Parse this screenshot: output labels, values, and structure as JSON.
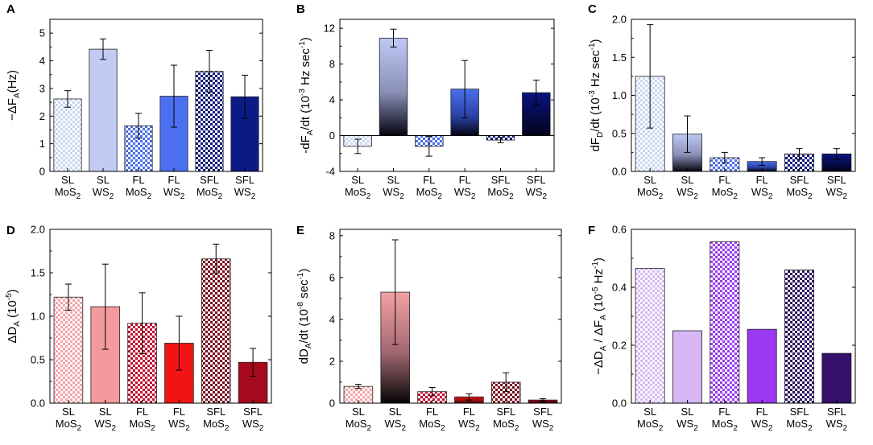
{
  "figure": {
    "panels": [
      {
        "id": "A",
        "ylabel": [
          {
            "t": "−ΔF"
          },
          {
            "t": "A",
            "sub": true
          },
          {
            "t": "(Hz)"
          }
        ]
      },
      {
        "id": "B",
        "ylabel": [
          {
            "t": "-dF"
          },
          {
            "t": "A",
            "sub": true
          },
          {
            "t": "/dt (10"
          },
          {
            "t": "-3",
            "sup": true
          },
          {
            "t": " Hz sec"
          },
          {
            "t": "-1",
            "sup": true
          },
          {
            "t": ")"
          }
        ]
      },
      {
        "id": "C",
        "ylabel": [
          {
            "t": "dF"
          },
          {
            "t": "D",
            "sub": true
          },
          {
            "t": "/dt (10"
          },
          {
            "t": "-3",
            "sup": true
          },
          {
            "t": " Hz sec"
          },
          {
            "t": "-1",
            "sup": true
          },
          {
            "t": ")"
          }
        ]
      },
      {
        "id": "D",
        "ylabel": [
          {
            "t": "ΔD"
          },
          {
            "t": "A",
            "sub": true
          },
          {
            "t": " (10"
          },
          {
            "t": "-5",
            "sup": true
          },
          {
            "t": ")"
          }
        ]
      },
      {
        "id": "E",
        "ylabel": [
          {
            "t": "dD"
          },
          {
            "t": "A",
            "sub": true
          },
          {
            "t": "/dt (10"
          },
          {
            "t": "-8",
            "sup": true
          },
          {
            "t": " sec"
          },
          {
            "t": "-1",
            "sup": true
          },
          {
            "t": ")"
          }
        ]
      },
      {
        "id": "F",
        "ylabel": [
          {
            "t": "−ΔD"
          },
          {
            "t": "A",
            "sub": true
          },
          {
            "t": " / ΔF"
          },
          {
            "t": "A",
            "sub": true
          },
          {
            "t": " (10"
          },
          {
            "t": "-5",
            "sup": true
          },
          {
            "t": " Hz"
          },
          {
            "t": "-1",
            "sup": true
          },
          {
            "t": ")"
          }
        ]
      }
    ]
  },
  "chart_data": [
    {
      "panel": "A",
      "type": "bar",
      "categories": [
        [
          "SL",
          "MoS",
          "2"
        ],
        [
          "SL",
          "WS",
          "2"
        ],
        [
          "FL",
          "MoS",
          "2"
        ],
        [
          "FL",
          "WS",
          "2"
        ],
        [
          "SFL",
          "MoS",
          "2"
        ],
        [
          "SFL",
          "WS",
          "2"
        ]
      ],
      "values": [
        2.62,
        4.42,
        1.65,
        2.72,
        3.62,
        2.7
      ],
      "errors": [
        0.3,
        0.37,
        0.45,
        1.12,
        0.76,
        0.78
      ],
      "ylim": [
        0,
        5.5
      ],
      "yticks": [
        0,
        1,
        2,
        3,
        4,
        5
      ],
      "tick_labels": [
        "0",
        "1",
        "2",
        "3",
        "4",
        "5"
      ],
      "ylabel": "−ΔFA(Hz)",
      "fills": [
        "check-light-blue",
        "solid-pale-blue",
        "check-blue",
        "solid-blue",
        "check-navy",
        "solid-navy"
      ]
    },
    {
      "panel": "B",
      "type": "bar",
      "categories": [
        [
          "SL",
          "MoS",
          "2"
        ],
        [
          "SL",
          "WS",
          "2"
        ],
        [
          "FL",
          "MoS",
          "2"
        ],
        [
          "FL",
          "WS",
          "2"
        ],
        [
          "SFL",
          "MoS",
          "2"
        ],
        [
          "SFL",
          "WS",
          "2"
        ]
      ],
      "values": [
        -1.2,
        10.9,
        -1.2,
        5.2,
        -0.5,
        4.8
      ],
      "errors": [
        0.8,
        1.0,
        1.1,
        3.2,
        0.3,
        1.4
      ],
      "ylim": [
        -4,
        13
      ],
      "yticks": [
        -4,
        0,
        4,
        8,
        12
      ],
      "tick_labels": [
        "-4",
        "0",
        "4",
        "8",
        "12"
      ],
      "ylabel": "-dFA/dt (10-3 Hz sec-1)",
      "fills": [
        "check-light-blue",
        "grad-pale-blue",
        "check-blue",
        "grad-blue",
        "check-navy",
        "grad-navy"
      ]
    },
    {
      "panel": "C",
      "type": "bar",
      "categories": [
        [
          "SL",
          "MoS",
          "2"
        ],
        [
          "SL",
          "WS",
          "2"
        ],
        [
          "FL",
          "MoS",
          "2"
        ],
        [
          "FL",
          "WS",
          "2"
        ],
        [
          "SFL",
          "MoS",
          "2"
        ],
        [
          "SFL",
          "WS",
          "2"
        ]
      ],
      "values": [
        1.25,
        0.49,
        0.18,
        0.13,
        0.23,
        0.23
      ],
      "errors": [
        0.68,
        0.24,
        0.07,
        0.05,
        0.07,
        0.07
      ],
      "ylim": [
        0,
        2.0
      ],
      "yticks": [
        0,
        0.5,
        1.0,
        1.5,
        2.0
      ],
      "tick_labels": [
        "0.0",
        "0.5",
        "1.0",
        "1.5",
        "2.0"
      ],
      "ylabel": "dFD/dt (10-3 Hz sec-1)",
      "fills": [
        "check-light-blue",
        "grad-pale-blue",
        "check-blue",
        "grad-blue",
        "check-navy",
        "grad-navy"
      ]
    },
    {
      "panel": "D",
      "type": "bar",
      "categories": [
        [
          "SL",
          "MoS",
          "2"
        ],
        [
          "SL",
          "WS",
          "2"
        ],
        [
          "FL",
          "MoS",
          "2"
        ],
        [
          "FL",
          "WS",
          "2"
        ],
        [
          "SFL",
          "MoS",
          "2"
        ],
        [
          "SFL",
          "WS",
          "2"
        ]
      ],
      "values": [
        1.22,
        1.11,
        0.92,
        0.69,
        1.66,
        0.47
      ],
      "errors": [
        0.15,
        0.49,
        0.35,
        0.31,
        0.17,
        0.16
      ],
      "ylim": [
        0,
        2.0
      ],
      "yticks": [
        0,
        0.5,
        1.0,
        1.5,
        2.0
      ],
      "tick_labels": [
        "0.0",
        "0.5",
        "1.0",
        "1.5",
        "2.0"
      ],
      "ylabel": "ΔDA (10-5)",
      "fills": [
        "check-pink",
        "solid-pink",
        "check-red",
        "solid-red",
        "check-maroon",
        "solid-maroon"
      ]
    },
    {
      "panel": "E",
      "type": "bar",
      "categories": [
        [
          "SL",
          "MoS",
          "2"
        ],
        [
          "SL",
          "WS",
          "2"
        ],
        [
          "FL",
          "MoS",
          "2"
        ],
        [
          "FL",
          "WS",
          "2"
        ],
        [
          "SFL",
          "MoS",
          "2"
        ],
        [
          "SFL",
          "WS",
          "2"
        ]
      ],
      "values": [
        0.8,
        5.3,
        0.55,
        0.3,
        1.0,
        0.15
      ],
      "errors": [
        0.1,
        2.5,
        0.2,
        0.15,
        0.45,
        0.06
      ],
      "ylim": [
        0,
        8.3
      ],
      "yticks": [
        0,
        2,
        4,
        6,
        8
      ],
      "tick_labels": [
        "0",
        "2",
        "4",
        "6",
        "8"
      ],
      "ylabel": "dDA/dt (10-8 sec-1)",
      "fills": [
        "check-pink",
        "grad-pink",
        "check-red",
        "grad-red",
        "check-maroon",
        "grad-maroon"
      ]
    },
    {
      "panel": "F",
      "type": "bar",
      "categories": [
        [
          "SL",
          "MoS",
          "2"
        ],
        [
          "SL",
          "WS",
          "2"
        ],
        [
          "FL",
          "MoS",
          "2"
        ],
        [
          "FL",
          "WS",
          "2"
        ],
        [
          "SFL",
          "MoS",
          "2"
        ],
        [
          "SFL",
          "WS",
          "2"
        ]
      ],
      "values": [
        0.465,
        0.25,
        0.557,
        0.255,
        0.46,
        0.172
      ],
      "errors": [
        null,
        null,
        null,
        null,
        null,
        null
      ],
      "ylim": [
        0,
        0.6
      ],
      "yticks": [
        0,
        0.2,
        0.4,
        0.6
      ],
      "tick_labels": [
        "0.0",
        "0.2",
        "0.4",
        "0.6"
      ],
      "ylabel": "−ΔDA / ΔFA (10-5 Hz-1)",
      "fills": [
        "check-lavender",
        "solid-lavender",
        "check-purple",
        "solid-purple",
        "check-indigo",
        "solid-indigo"
      ]
    }
  ],
  "colors": {
    "light_blue": "#c9d6f3",
    "pale_blue": "#bcc7f2",
    "blue": "#4a6fe6",
    "navy": "#101a7a",
    "navy_dark": "#0a1470",
    "pink": "#f4a6a8",
    "red": "#f01010",
    "maroon": "#8a0b1e",
    "maroon_dark": "#b0081c",
    "lavender": "#d8b8f4",
    "purple": "#9a3cf0",
    "indigo": "#35156c"
  }
}
